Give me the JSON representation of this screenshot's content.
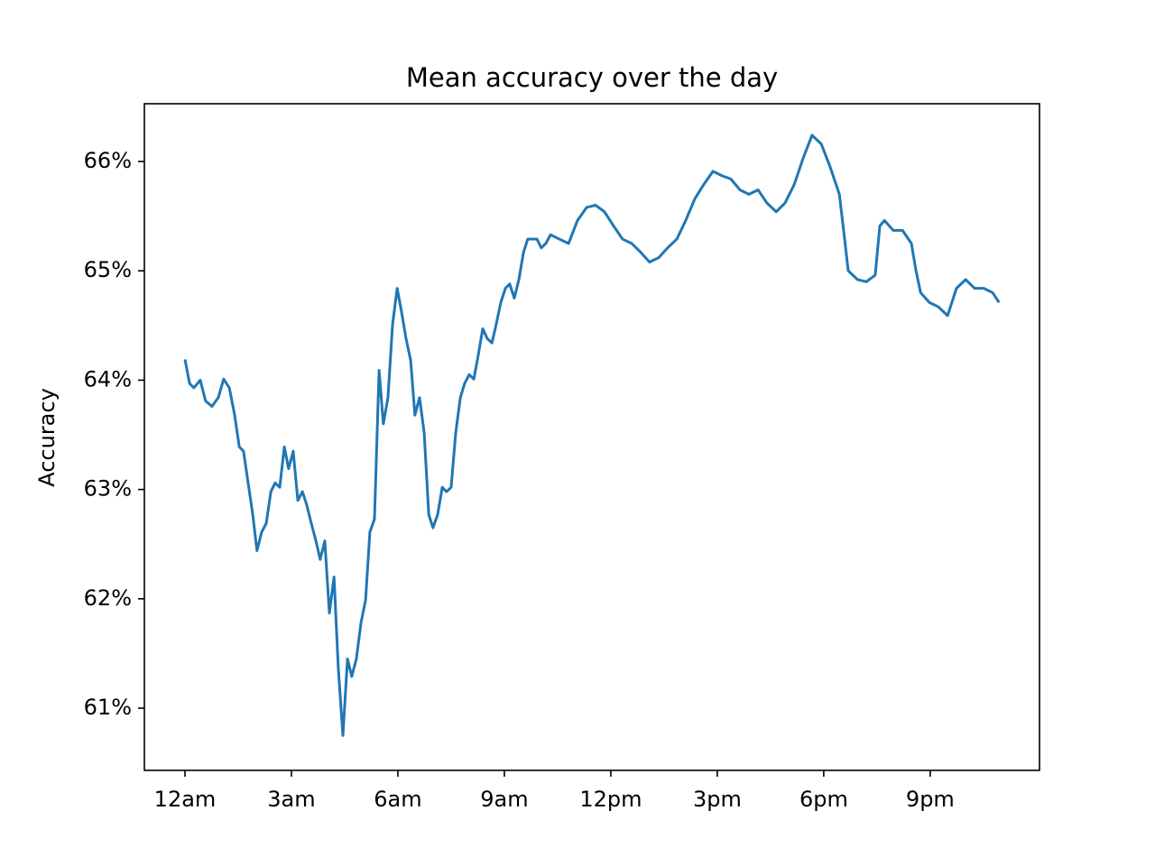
{
  "chart_data": {
    "type": "line",
    "title": "Mean accuracy over the day",
    "y_label": "Accuracy",
    "color": "#1f77b4",
    "grid": false,
    "xlim": [
      -1.144,
      24.08
    ],
    "ylim": [
      60.431,
      66.528
    ],
    "xticks": [
      {
        "value": 0,
        "label": "12am"
      },
      {
        "value": 3,
        "label": "3am"
      },
      {
        "value": 6,
        "label": "6am"
      },
      {
        "value": 9,
        "label": "9am"
      },
      {
        "value": 12,
        "label": "12pm"
      },
      {
        "value": 15,
        "label": "3pm"
      },
      {
        "value": 18,
        "label": "6pm"
      },
      {
        "value": 21,
        "label": "9pm"
      }
    ],
    "yticks": [
      {
        "value": 61,
        "label": "61%"
      },
      {
        "value": 62,
        "label": "62%"
      },
      {
        "value": 63,
        "label": "63%"
      },
      {
        "value": 64,
        "label": "64%"
      },
      {
        "value": 65,
        "label": "65%"
      },
      {
        "value": 66,
        "label": "66%"
      }
    ],
    "x": [
      0,
      0.13,
      0.25,
      0.43,
      0.58,
      0.76,
      0.94,
      1.09,
      1.25,
      1.4,
      1.53,
      1.65,
      1.78,
      1.91,
      2.03,
      2.16,
      2.29,
      2.42,
      2.54,
      2.67,
      2.8,
      2.92,
      3.05,
      3.18,
      3.31,
      3.43,
      3.56,
      3.69,
      3.81,
      3.94,
      4.07,
      4.2,
      4.32,
      4.45,
      4.58,
      4.7,
      4.83,
      4.96,
      5.09,
      5.21,
      5.34,
      5.47,
      5.59,
      5.72,
      5.85,
      5.98,
      6.1,
      6.23,
      6.36,
      6.48,
      6.61,
      6.74,
      6.87,
      6.99,
      7.12,
      7.25,
      7.37,
      7.5,
      7.63,
      7.76,
      7.88,
      8.01,
      8.14,
      8.26,
      8.39,
      8.52,
      8.65,
      8.77,
      8.9,
      9.03,
      9.15,
      9.28,
      9.41,
      9.54,
      9.66,
      9.79,
      9.92,
      10.04,
      10.17,
      10.3,
      10.55,
      10.81,
      11.06,
      11.32,
      11.57,
      11.82,
      12.08,
      12.33,
      12.59,
      12.84,
      13.09,
      13.35,
      13.6,
      13.86,
      14.11,
      14.37,
      14.62,
      14.88,
      15.13,
      15.38,
      15.64,
      15.89,
      16.15,
      16.4,
      16.66,
      16.91,
      17.17,
      17.42,
      17.67,
      17.93,
      18.18,
      18.44,
      18.56,
      18.69,
      18.95,
      19.2,
      19.45,
      19.58,
      19.71,
      19.96,
      20.22,
      20.47,
      20.6,
      20.73,
      20.98,
      21.23,
      21.49,
      21.74,
      22.0,
      22.25,
      22.51,
      22.76,
      22.94
    ],
    "values": [
      64.19,
      63.97,
      63.93,
      64.0,
      63.81,
      63.76,
      63.84,
      64.01,
      63.93,
      63.68,
      63.39,
      63.35,
      63.06,
      62.77,
      62.44,
      62.61,
      62.69,
      62.98,
      63.06,
      63.02,
      63.39,
      63.19,
      63.35,
      62.9,
      62.98,
      62.86,
      62.69,
      62.53,
      62.36,
      62.53,
      61.87,
      62.2,
      61.37,
      60.75,
      61.45,
      61.29,
      61.45,
      61.78,
      61.99,
      62.61,
      62.73,
      64.09,
      63.6,
      63.84,
      64.51,
      64.84,
      64.63,
      64.38,
      64.18,
      63.68,
      63.84,
      63.52,
      62.77,
      62.65,
      62.77,
      63.02,
      62.98,
      63.02,
      63.52,
      63.84,
      63.97,
      64.05,
      64.01,
      64.22,
      64.47,
      64.38,
      64.34,
      64.51,
      64.71,
      64.84,
      64.88,
      64.75,
      64.92,
      65.17,
      65.29,
      65.29,
      65.29,
      65.21,
      65.25,
      65.33,
      65.29,
      65.25,
      65.46,
      65.58,
      65.6,
      65.54,
      65.41,
      65.29,
      65.25,
      65.17,
      65.08,
      65.12,
      65.21,
      65.29,
      65.46,
      65.66,
      65.79,
      65.91,
      65.87,
      65.84,
      65.74,
      65.7,
      65.74,
      65.62,
      65.54,
      65.62,
      65.79,
      66.03,
      66.24,
      66.16,
      65.95,
      65.7,
      65.37,
      65.0,
      64.92,
      64.9,
      64.96,
      65.41,
      65.46,
      65.37,
      65.37,
      65.25,
      65.0,
      64.8,
      64.71,
      64.67,
      64.59,
      64.84,
      64.92,
      64.84,
      64.84,
      64.8,
      64.71
    ]
  }
}
